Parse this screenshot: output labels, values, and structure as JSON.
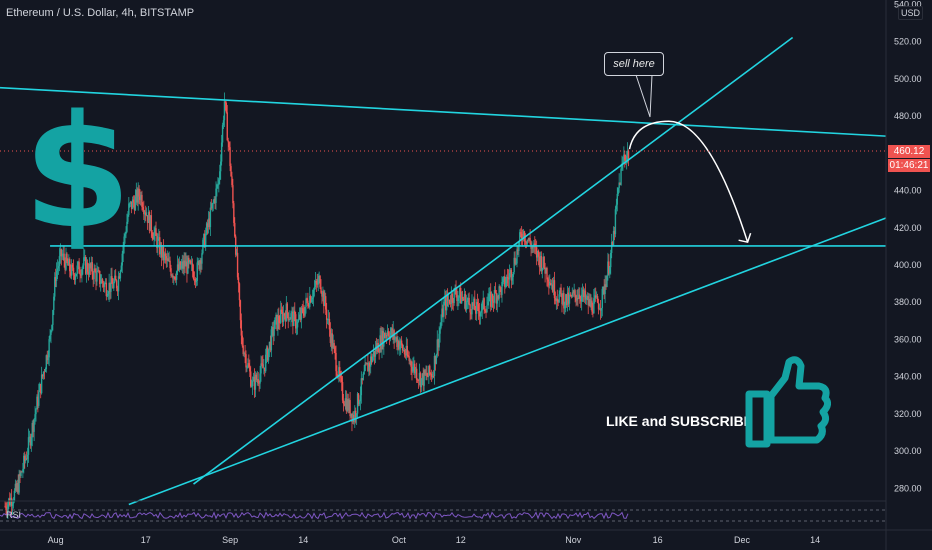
{
  "header": {
    "title": "Ethereum / U.S. Dollar, 4h, BITSTAMP",
    "currency": "USD",
    "indicator": "RSI"
  },
  "price_tags": {
    "last_price": "460.12",
    "countdown": "01:46:21"
  },
  "annotations": {
    "callout": "sell here",
    "cta": "LIKE and SUBSCRIBE",
    "dollar_symbol": "$"
  },
  "colors": {
    "background": "#131722",
    "trendline": "#22d4e0",
    "up_candle": "#26a69a",
    "down_candle": "#ef5350",
    "accent_teal": "#14a3a3",
    "rsi_line": "#7e57c2"
  },
  "icons": [
    "thumbs-up-icon"
  ],
  "chart_data": {
    "type": "candlestick",
    "instrument": "Ethereum / U.S. Dollar",
    "timeframe": "4h",
    "exchange": "BITSTAMP",
    "ylim": [
      270,
      540
    ],
    "y_ticks": [
      280,
      300,
      320,
      340,
      360,
      380,
      400,
      420,
      440,
      460,
      480,
      500,
      520,
      540
    ],
    "y_tick_labels": [
      "280.00",
      "300.00",
      "320.00",
      "340.00",
      "360.00",
      "380.00",
      "400.00",
      "420.00",
      "440.00",
      "460.00",
      "480.00",
      "500.00",
      "520.00",
      "540.00"
    ],
    "x_ticks": [
      {
        "label": "Aug",
        "day": 1
      },
      {
        "label": "17",
        "day": 17
      },
      {
        "label": "Sep",
        "day": 32
      },
      {
        "label": "14",
        "day": 45
      },
      {
        "label": "Oct",
        "day": 62
      },
      {
        "label": "12",
        "day": 73
      },
      {
        "label": "Nov",
        "day": 93
      },
      {
        "label": "16",
        "day": 108
      },
      {
        "label": "Dec",
        "day": 123
      },
      {
        "label": "14",
        "day": 136
      }
    ],
    "x_range_days": [
      -8.9,
      148.6
    ],
    "last_price": 460.12,
    "price_path": [
      [
        -8,
        270
      ],
      [
        -6,
        278
      ],
      [
        -4,
        300
      ],
      [
        -2,
        330
      ],
      [
        0,
        360
      ],
      [
        1,
        395
      ],
      [
        2,
        405
      ],
      [
        4,
        395
      ],
      [
        6,
        400
      ],
      [
        8,
        395
      ],
      [
        10,
        388
      ],
      [
        12,
        390
      ],
      [
        14,
        430
      ],
      [
        16,
        438
      ],
      [
        18,
        420
      ],
      [
        20,
        405
      ],
      [
        22,
        395
      ],
      [
        24,
        400
      ],
      [
        26,
        395
      ],
      [
        28,
        420
      ],
      [
        30,
        445
      ],
      [
        31,
        488
      ],
      [
        32,
        455
      ],
      [
        33,
        410
      ],
      [
        34,
        360
      ],
      [
        36,
        335
      ],
      [
        38,
        345
      ],
      [
        40,
        368
      ],
      [
        42,
        375
      ],
      [
        44,
        368
      ],
      [
        46,
        382
      ],
      [
        48,
        392
      ],
      [
        50,
        360
      ],
      [
        52,
        330
      ],
      [
        54,
        318
      ],
      [
        56,
        342
      ],
      [
        58,
        355
      ],
      [
        60,
        365
      ],
      [
        62,
        358
      ],
      [
        64,
        348
      ],
      [
        66,
        338
      ],
      [
        68,
        342
      ],
      [
        70,
        378
      ],
      [
        72,
        385
      ],
      [
        74,
        380
      ],
      [
        76,
        375
      ],
      [
        78,
        380
      ],
      [
        80,
        386
      ],
      [
        82,
        396
      ],
      [
        84,
        418
      ],
      [
        86,
        408
      ],
      [
        88,
        398
      ],
      [
        90,
        384
      ],
      [
        92,
        380
      ],
      [
        94,
        385
      ],
      [
        96,
        378
      ],
      [
        98,
        380
      ],
      [
        100,
        410
      ],
      [
        101,
        440
      ],
      [
        102,
        458
      ],
      [
        103,
        460
      ]
    ],
    "trendlines": [
      {
        "name": "resistance",
        "points": [
          [
            -8.9,
            495
          ],
          [
            148.6,
            469
          ]
        ]
      },
      {
        "name": "horizontal-support",
        "points": [
          [
            0,
            410
          ],
          [
            148.6,
            410
          ]
        ]
      },
      {
        "name": "steep-support",
        "points": [
          [
            25.5,
            282
          ],
          [
            132,
            522
          ]
        ]
      },
      {
        "name": "rising-support",
        "points": [
          [
            14,
            271
          ],
          [
            148.6,
            425
          ]
        ]
      }
    ],
    "projection": {
      "from": [
        103,
        462
      ],
      "peak": [
        110,
        477
      ],
      "to": [
        124,
        412
      ]
    },
    "rsi": {
      "upper": 70,
      "lower": 30
    }
  }
}
